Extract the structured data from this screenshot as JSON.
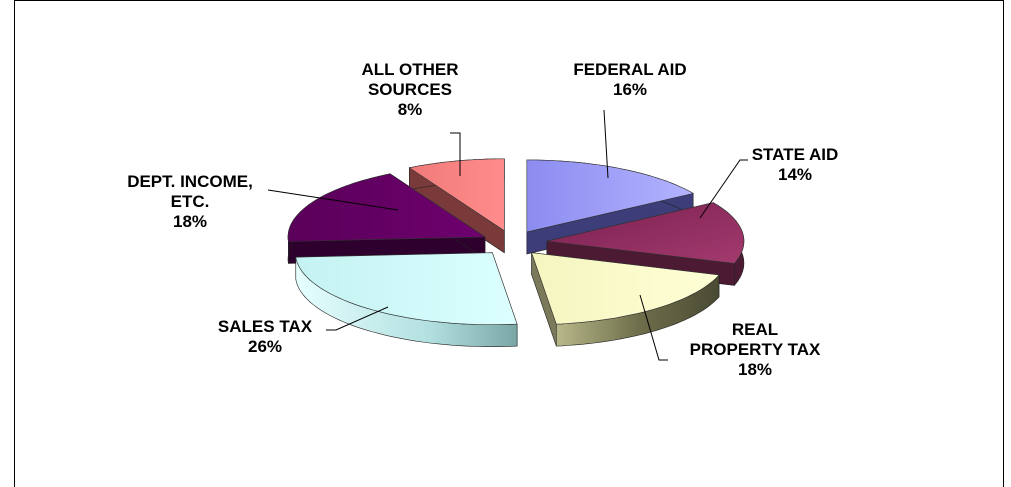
{
  "chart_data": {
    "type": "pie",
    "style": "3d-exploded",
    "title": "",
    "slices": [
      {
        "label_lines": [
          "FEDERAL AID"
        ],
        "value": 16,
        "pct": "16%",
        "color": "#9999ff",
        "color_side": "#3d3d7a"
      },
      {
        "label_lines": [
          "STATE AID"
        ],
        "value": 14,
        "pct": "14%",
        "color": "#993366",
        "color_side": "#4d1a33"
      },
      {
        "label_lines": [
          "REAL",
          "PROPERTY TAX"
        ],
        "value": 18,
        "pct": "18%",
        "color": "#ffffcc",
        "color_side": "#7a7a5a"
      },
      {
        "label_lines": [
          "SALES TAX"
        ],
        "value": 26,
        "pct": "26%",
        "color": "#ccffff",
        "color_side": "#7fb0b0"
      },
      {
        "label_lines": [
          "DEPT. INCOME,",
          "ETC."
        ],
        "value": 18,
        "pct": "18%",
        "color": "#660066",
        "color_side": "#2e002e"
      },
      {
        "label_lines": [
          "ALL OTHER",
          "SOURCES"
        ],
        "value": 8,
        "pct": "8%",
        "color": "#ff8080",
        "color_side": "#7a3a3a"
      }
    ]
  }
}
